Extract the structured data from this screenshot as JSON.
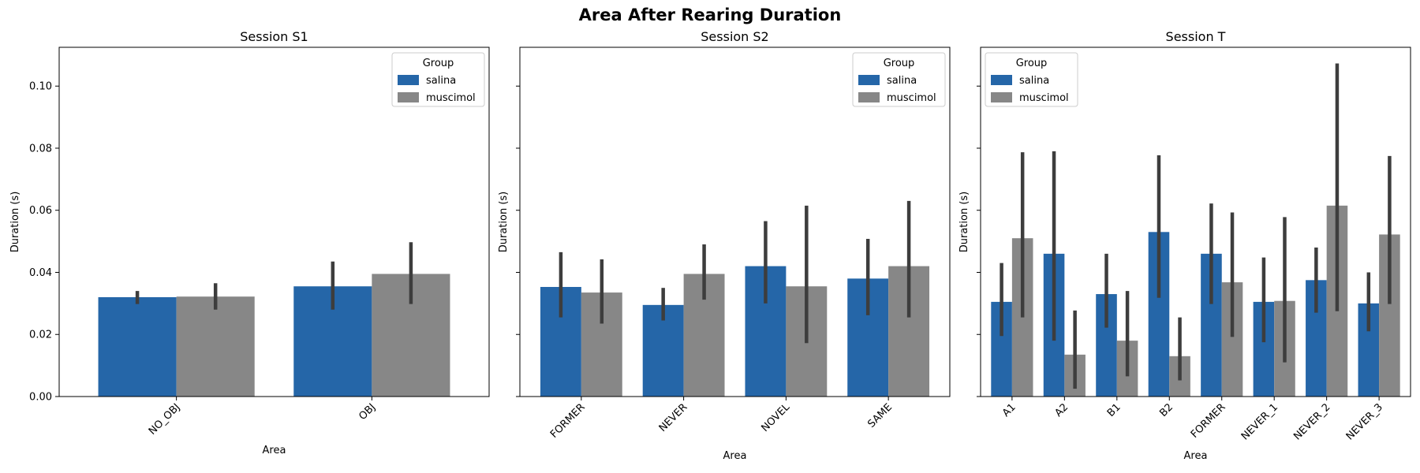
{
  "figure_title": "Area After Rearing Duration",
  "colors": {
    "salina": "#2566a8",
    "muscimol": "#878787",
    "error_bar": "#3d3d3d"
  },
  "chart_data": [
    {
      "type": "bar",
      "title": "Session S1",
      "xlabel": "Area",
      "ylabel": "Duration (s)",
      "ylim": [
        0,
        0.1125
      ],
      "yticks": [
        0.0,
        0.02,
        0.04,
        0.06,
        0.08,
        0.1
      ],
      "ytick_labels": [
        "0.00",
        "0.02",
        "0.04",
        "0.06",
        "0.08",
        "0.10"
      ],
      "show_ytick_labels": true,
      "legend": {
        "title": "Group",
        "position": "top-right",
        "entries": [
          "salina",
          "muscimol"
        ]
      },
      "categories": [
        "NO_OBJ",
        "OBJ"
      ],
      "series": [
        {
          "name": "salina",
          "values": [
            0.032,
            0.0355
          ],
          "ci": [
            [
              0.0298,
              0.034
            ],
            [
              0.028,
              0.0435
            ]
          ]
        },
        {
          "name": "muscimol",
          "values": [
            0.0322,
            0.0395
          ],
          "ci": [
            [
              0.028,
              0.0365
            ],
            [
              0.0298,
              0.0497
            ]
          ]
        }
      ]
    },
    {
      "type": "bar",
      "title": "Session S2",
      "xlabel": "Area",
      "ylabel": "Duration (s)",
      "ylim": [
        0,
        0.1125
      ],
      "yticks": [
        0.0,
        0.02,
        0.04,
        0.06,
        0.08,
        0.1
      ],
      "ytick_labels": [
        "0.00",
        "0.02",
        "0.04",
        "0.06",
        "0.08",
        "0.10"
      ],
      "show_ytick_labels": false,
      "legend": {
        "title": "Group",
        "position": "top-right",
        "entries": [
          "salina",
          "muscimol"
        ]
      },
      "categories": [
        "FORMER",
        "NEVER",
        "NOVEL",
        "SAME"
      ],
      "series": [
        {
          "name": "salina",
          "values": [
            0.0353,
            0.0295,
            0.042,
            0.038
          ],
          "ci": [
            [
              0.0255,
              0.0465
            ],
            [
              0.0245,
              0.035
            ],
            [
              0.03,
              0.0565
            ],
            [
              0.0262,
              0.0508
            ]
          ]
        },
        {
          "name": "muscimol",
          "values": [
            0.0335,
            0.0395,
            0.0355,
            0.042
          ],
          "ci": [
            [
              0.0235,
              0.0442
            ],
            [
              0.0312,
              0.049
            ],
            [
              0.0172,
              0.0615
            ],
            [
              0.0255,
              0.063
            ]
          ]
        }
      ]
    },
    {
      "type": "bar",
      "title": "Session T",
      "xlabel": "Area",
      "ylabel": "Duration (s)",
      "ylim": [
        0,
        0.1125
      ],
      "yticks": [
        0.0,
        0.02,
        0.04,
        0.06,
        0.08,
        0.1
      ],
      "ytick_labels": [
        "0.00",
        "0.02",
        "0.04",
        "0.06",
        "0.08",
        "0.10"
      ],
      "show_ytick_labels": false,
      "legend": {
        "title": "Group",
        "position": "top-left",
        "entries": [
          "salina",
          "muscimol"
        ]
      },
      "categories": [
        "A1",
        "A2",
        "B1",
        "B2",
        "FORMER",
        "NEVER_1",
        "NEVER_2",
        "NEVER_3"
      ],
      "series": [
        {
          "name": "salina",
          "values": [
            0.0305,
            0.046,
            0.033,
            0.053,
            0.046,
            0.0305,
            0.0375,
            0.03
          ],
          "ci": [
            [
              0.0195,
              0.043
            ],
            [
              0.018,
              0.079
            ],
            [
              0.0222,
              0.046
            ],
            [
              0.0318,
              0.0777
            ],
            [
              0.0298,
              0.0622
            ],
            [
              0.0175,
              0.0448
            ],
            [
              0.027,
              0.048
            ],
            [
              0.021,
              0.04
            ]
          ]
        },
        {
          "name": "muscimol",
          "values": [
            0.051,
            0.0135,
            0.018,
            0.013,
            0.0368,
            0.0308,
            0.0615,
            0.0522
          ],
          "ci": [
            [
              0.0255,
              0.0787
            ],
            [
              0.0025,
              0.0277
            ],
            [
              0.0065,
              0.034
            ],
            [
              0.0052,
              0.0255
            ],
            [
              0.0192,
              0.0593
            ],
            [
              0.011,
              0.0578
            ],
            [
              0.0275,
              0.1073
            ],
            [
              0.0298,
              0.0775
            ]
          ]
        }
      ]
    }
  ]
}
